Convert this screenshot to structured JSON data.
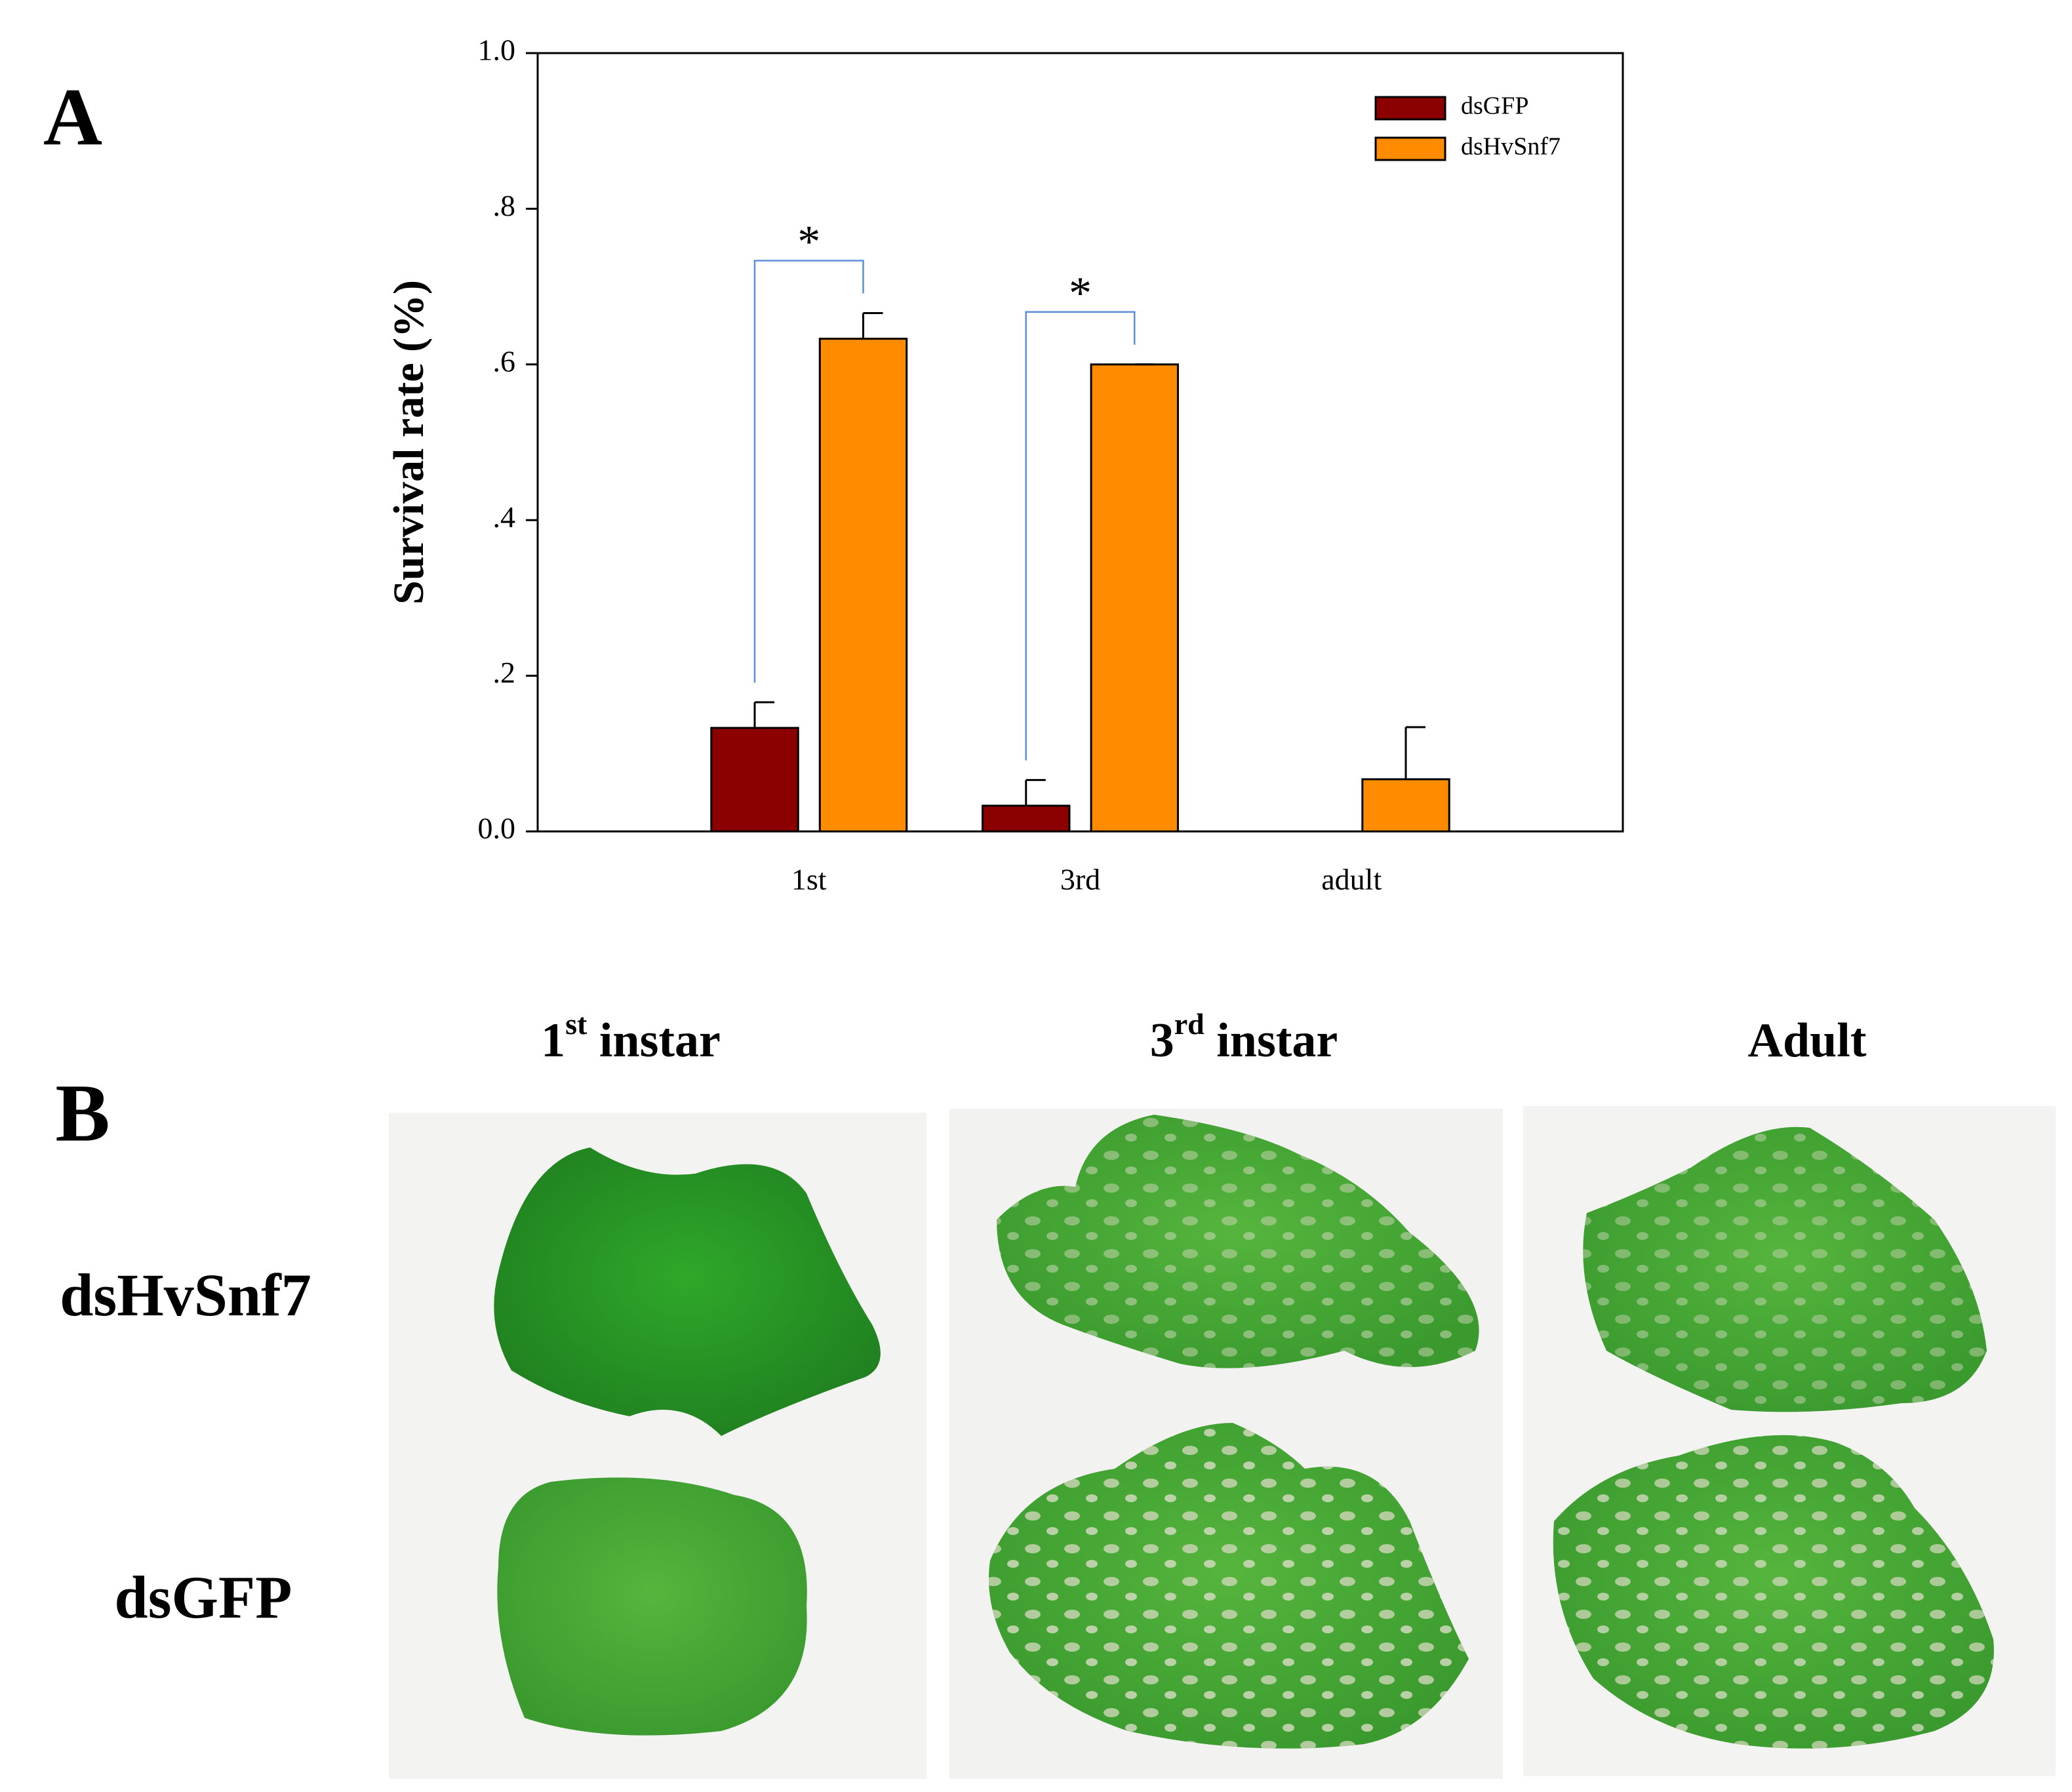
{
  "panel_labels": [
    "A",
    "B"
  ],
  "chart_data": {
    "type": "bar",
    "y_label": "Survival rate (%)",
    "categories": [
      "1st",
      "3rd",
      "adult"
    ],
    "series": [
      {
        "name": "dsGFP",
        "color": "#8b0000",
        "values": [
          0.133,
          0.033,
          0
        ],
        "errors": [
          0.033,
          0.033,
          0
        ]
      },
      {
        "name": "dsHvSnf7",
        "color": "#ff8c00",
        "values": [
          0.633,
          0.6,
          0.067
        ],
        "errors": [
          0.033,
          0,
          0.067
        ]
      }
    ],
    "ylim": [
      0,
      1
    ],
    "yticks": [
      {
        "value": 0,
        "label": "0.0"
      },
      {
        "value": 0.2,
        "label": ".2"
      },
      {
        "value": 0.4,
        "label": ".4"
      },
      {
        "value": 0.6,
        "label": ".6"
      },
      {
        "value": 0.8,
        "label": ".8"
      },
      {
        "value": 1,
        "label": "1.0"
      }
    ],
    "legend": "upper right",
    "annotations": [
      "*",
      "*"
    ]
  },
  "photo_panel": {
    "columns": [
      {
        "main": "1",
        "sup": "st",
        "rest": " instar"
      },
      {
        "main": "3",
        "sup": "rd",
        "rest": " instar"
      },
      {
        "main": "Adult"
      }
    ],
    "rows": [
      "dsHvSnf7",
      "dsGFP"
    ]
  }
}
